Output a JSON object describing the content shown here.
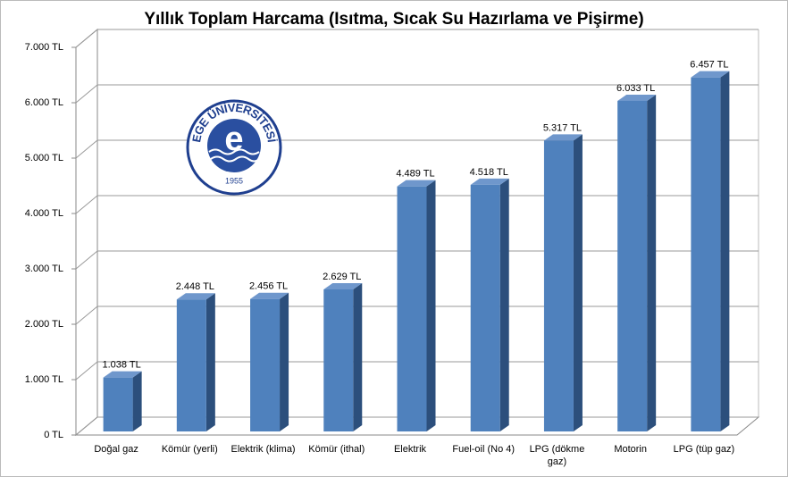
{
  "chart_data": {
    "type": "bar3d",
    "title": "Yıllık Toplam Harcama (Isıtma, Sıcak Su Hazırlama ve Pişirme)",
    "categories": [
      "Doğal gaz",
      "Kömür (yerli)",
      "Elektrik (klima)",
      "Kömür (ithal)",
      "Elektrik",
      "Fuel-oil (No 4)",
      "LPG (dökme gaz)",
      "Motorin",
      "LPG (tüp gaz)"
    ],
    "values": [
      1038,
      2448,
      2456,
      2629,
      4489,
      4518,
      5317,
      6033,
      6457
    ],
    "value_labels": [
      "1.038 TL",
      "2.448 TL",
      "2.456 TL",
      "2.629 TL",
      "4.489 TL",
      "4.518 TL",
      "5.317 TL",
      "6.033 TL",
      "6.457 TL"
    ],
    "color": "#4f81bd",
    "ylim": [
      0,
      7000
    ],
    "yticks": [
      {
        "value": 0,
        "label": "0 TL"
      },
      {
        "value": 1000,
        "label": "1.000 TL"
      },
      {
        "value": 2000,
        "label": "2.000 TL"
      },
      {
        "value": 3000,
        "label": "3.000 TL"
      },
      {
        "value": 4000,
        "label": "4.000 TL"
      },
      {
        "value": 5000,
        "label": "5.000 TL"
      },
      {
        "value": 6000,
        "label": "6.000 TL"
      },
      {
        "value": 7000,
        "label": "7.000 TL"
      }
    ],
    "grid": true
  },
  "logo": {
    "text": "EGE ÜNİVERSİTESİ",
    "year": "1955",
    "letter": "e"
  }
}
